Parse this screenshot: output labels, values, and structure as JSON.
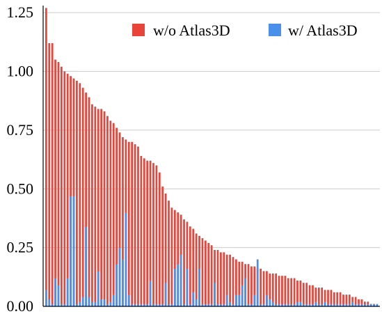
{
  "chart_data": {
    "type": "bar",
    "ylim": [
      0,
      1.28
    ],
    "yticks": [
      "0.00",
      "0.25",
      "0.50",
      "0.75",
      "1.00",
      "1.25"
    ],
    "ytick_values": [
      0,
      0.25,
      0.5,
      0.75,
      1.0,
      1.25
    ],
    "grid": "horizontal",
    "legend_position": "top-right",
    "colors": {
      "without": "#e8443a",
      "with": "#4a8fea",
      "grid": "#cccccc",
      "axis": "#000000"
    },
    "series": [
      {
        "name": "w/o Atlas3D",
        "values": [
          1.27,
          1.12,
          1.12,
          1.05,
          1.04,
          1.02,
          1.0,
          0.99,
          0.98,
          0.97,
          0.96,
          0.95,
          0.93,
          0.91,
          0.89,
          0.86,
          0.85,
          0.84,
          0.84,
          0.83,
          0.81,
          0.79,
          0.78,
          0.76,
          0.74,
          0.72,
          0.71,
          0.7,
          0.7,
          0.69,
          0.68,
          0.64,
          0.63,
          0.62,
          0.62,
          0.61,
          0.6,
          0.57,
          0.51,
          0.48,
          0.45,
          0.42,
          0.41,
          0.4,
          0.39,
          0.37,
          0.36,
          0.34,
          0.33,
          0.31,
          0.3,
          0.29,
          0.28,
          0.27,
          0.26,
          0.24,
          0.24,
          0.23,
          0.23,
          0.22,
          0.22,
          0.21,
          0.2,
          0.19,
          0.19,
          0.18,
          0.18,
          0.17,
          0.17,
          0.16,
          0.16,
          0.15,
          0.15,
          0.14,
          0.14,
          0.14,
          0.13,
          0.13,
          0.13,
          0.12,
          0.12,
          0.12,
          0.11,
          0.11,
          0.1,
          0.1,
          0.09,
          0.09,
          0.08,
          0.08,
          0.08,
          0.07,
          0.07,
          0.07,
          0.06,
          0.06,
          0.06,
          0.05,
          0.05,
          0.05,
          0.04,
          0.04,
          0.03,
          0.03,
          0.02,
          0.02,
          0.01,
          0.01,
          0.005
        ]
      },
      {
        "name": "w/ Atlas3D",
        "values": [
          0.07,
          0.03,
          0.01,
          0.12,
          0.09,
          0.01,
          0.01,
          0.12,
          0.47,
          0.47,
          0.01,
          0.02,
          0.04,
          0.34,
          0.04,
          0.02,
          0.02,
          0.15,
          0.03,
          0.03,
          0.01,
          0.02,
          0.05,
          0.18,
          0.25,
          0.2,
          0.4,
          0.05,
          0.01,
          0.01,
          0.01,
          0.01,
          0.01,
          0.01,
          0.11,
          0.01,
          0.01,
          0.01,
          0.01,
          0.1,
          0.01,
          0.01,
          0.16,
          0.18,
          0.22,
          0.01,
          0.16,
          0.01,
          0.06,
          0.03,
          0.16,
          0.01,
          0.01,
          0.01,
          0.01,
          0.1,
          0.01,
          0.01,
          0.01,
          0.05,
          0.02,
          0.01,
          0.05,
          0.05,
          0.09,
          0.12,
          0.01,
          0.01,
          0.05,
          0.2,
          0.01,
          0.01,
          0.05,
          0.03,
          0.02,
          0.01,
          0.01,
          0.01,
          0.01,
          0.01,
          0.01,
          0.01,
          0.02,
          0.02,
          0.01,
          0.01,
          0.01,
          0.01,
          0.02,
          0.01,
          0.01,
          0.02,
          0.01,
          0.01,
          0.01,
          0.01,
          0.01,
          0.01,
          0.01,
          0.01,
          0.02,
          0.01,
          0.01,
          0.01,
          0.01,
          0.01,
          0.01,
          0.01,
          0.01
        ]
      }
    ]
  }
}
